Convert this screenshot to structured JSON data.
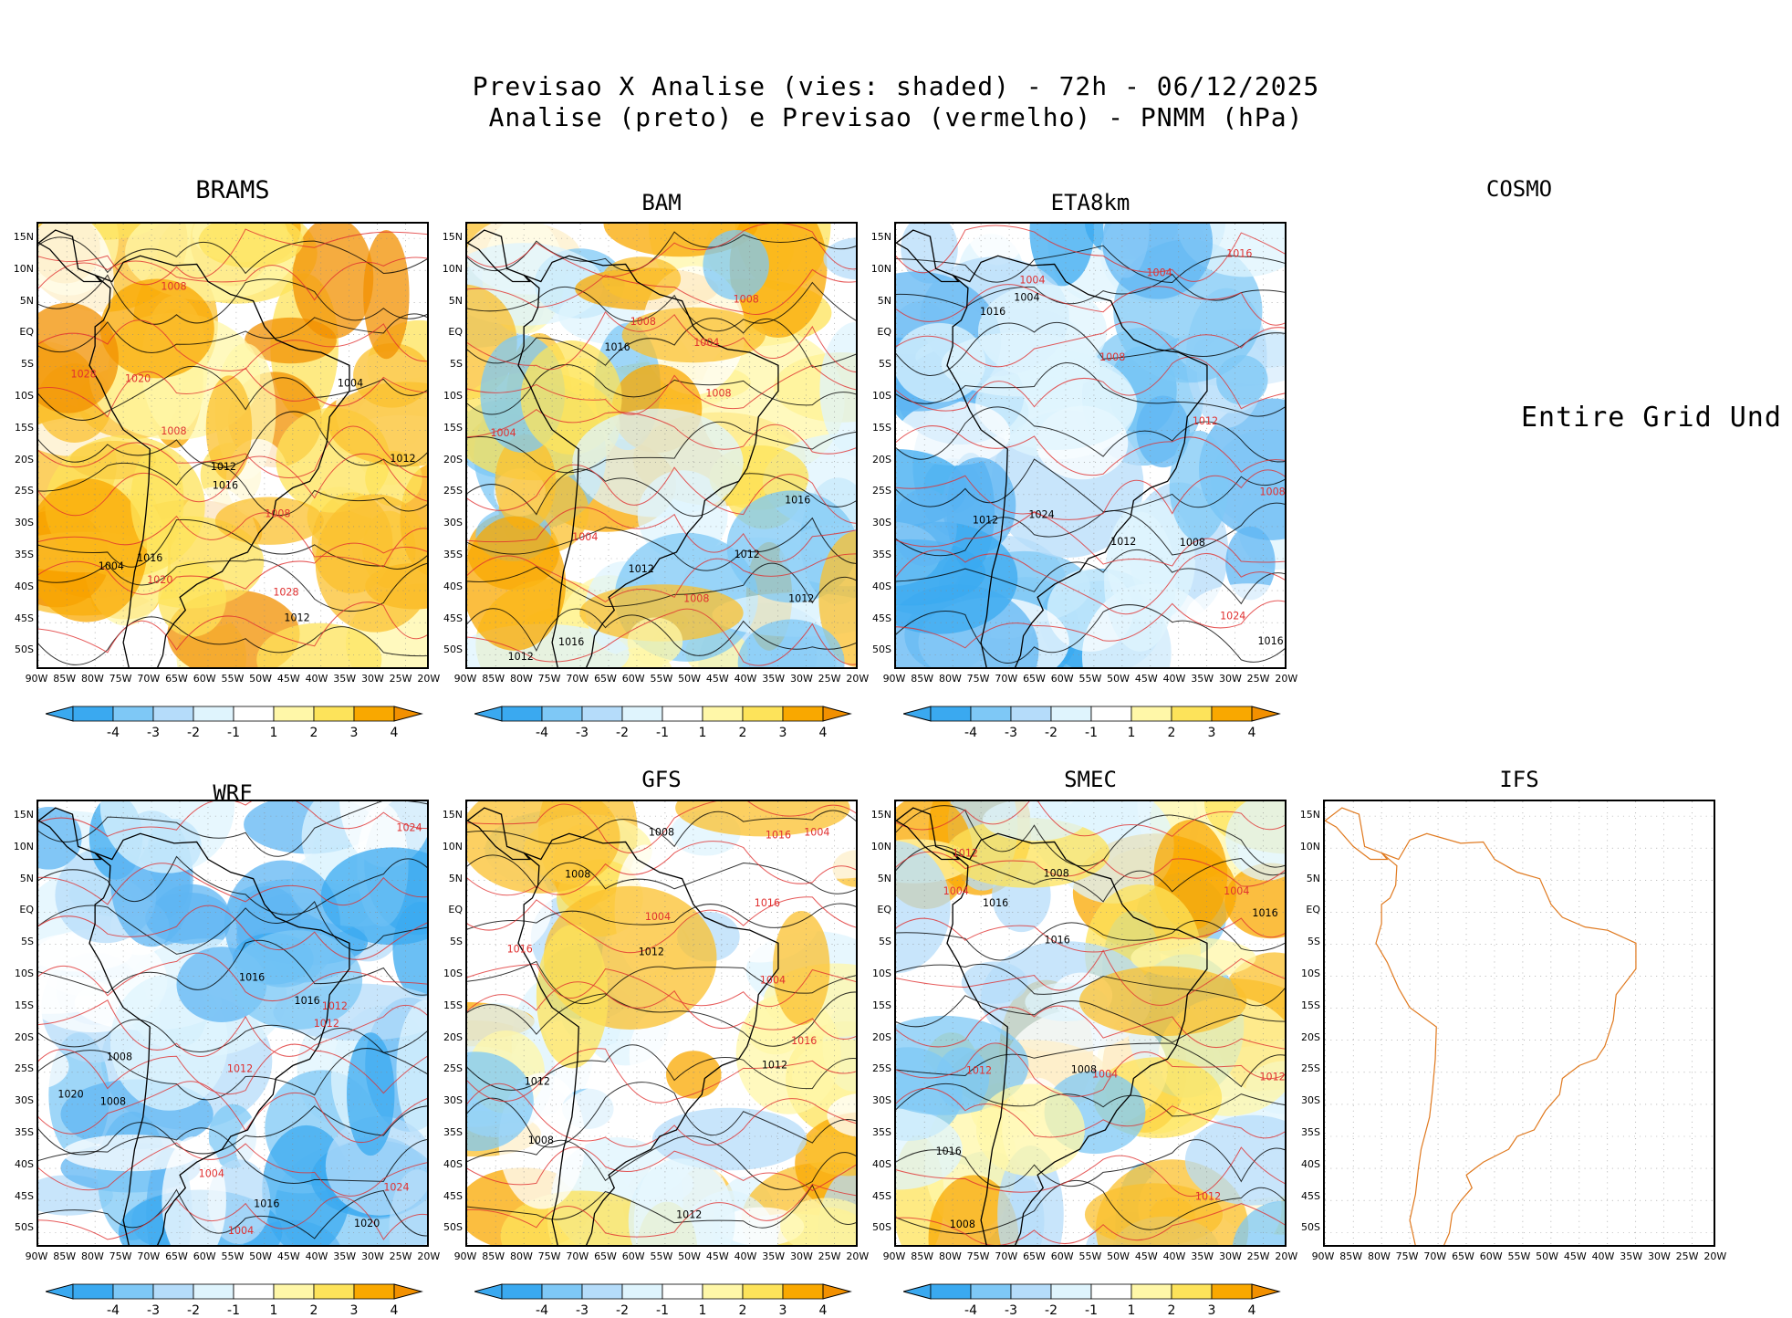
{
  "header": {
    "line1": "Previsao X Analise (vies: shaded) - 72h - 06/12/2025",
    "line2": "Analise (preto) e Previsao (vermelho) - PNMM (hPa)"
  },
  "lat_labels": [
    "15N",
    "10N",
    "5N",
    "EQ",
    "5S",
    "10S",
    "15S",
    "20S",
    "25S",
    "30S",
    "35S",
    "40S",
    "45S",
    "50S"
  ],
  "lon_labels": [
    "90W",
    "85W",
    "80W",
    "75W",
    "70W",
    "65W",
    "60W",
    "55W",
    "50W",
    "45W",
    "40W",
    "35W",
    "30W",
    "25W",
    "20W"
  ],
  "colorbar": {
    "labels": [
      "-4",
      "-3",
      "-2",
      "-1",
      "1",
      "2",
      "3",
      "4"
    ],
    "colors": [
      "#3aa9f0",
      "#7ec8f6",
      "#b5dcfa",
      "#dff4fd",
      "#ffffff",
      "#fff7a8",
      "#fde35a",
      "#fbc02d",
      "#f9a800",
      "#f29000"
    ]
  },
  "no_data_text": "Entire Grid Und",
  "panels": [
    {
      "name": "BRAMS",
      "bias": "warm",
      "contours": [
        "1012",
        "1008",
        "1016",
        "1020",
        "1004",
        "1028"
      ]
    },
    {
      "name": "BAM",
      "bias": "mixed",
      "contours": [
        "1012",
        "1008",
        "1016",
        "1004"
      ]
    },
    {
      "name": "ETA8km",
      "bias": "cold",
      "contours": [
        "1012",
        "1008",
        "1016",
        "1004",
        "1024"
      ]
    },
    {
      "name": "COSMO",
      "bias": "none",
      "contours": []
    },
    {
      "name": "WRF",
      "bias": "cold",
      "contours": [
        "1016",
        "1012",
        "1008",
        "1004",
        "1020",
        "1024"
      ]
    },
    {
      "name": "GFS",
      "bias": "mixed",
      "contours": [
        "1012",
        "1016",
        "1008",
        "1004"
      ]
    },
    {
      "name": "SMEC",
      "bias": "mixed",
      "contours": [
        "1016",
        "1012",
        "1008",
        "1004"
      ]
    },
    {
      "name": "IFS",
      "bias": "outline",
      "contours": []
    }
  ]
}
